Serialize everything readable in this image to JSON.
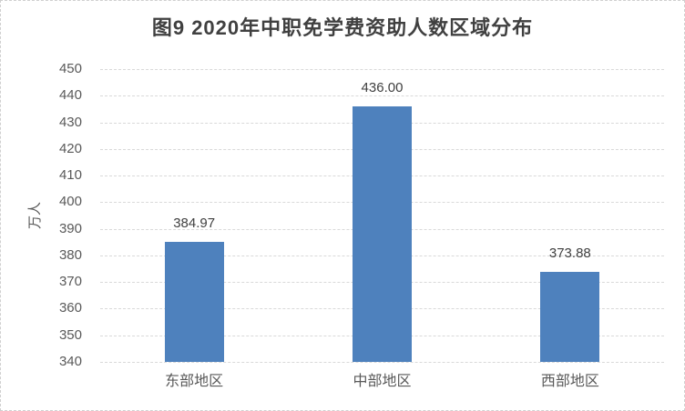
{
  "chart_data": {
    "type": "bar",
    "title": "图9 2020年中职免学费资助人数区域分布",
    "categories": [
      "东部地区",
      "中部地区",
      "西部地区"
    ],
    "values": [
      384.97,
      436.0,
      373.88
    ],
    "data_labels": [
      "384.97",
      "436.00",
      "373.88"
    ],
    "xlabel": "",
    "ylabel": "万人",
    "ylim": [
      340,
      450
    ],
    "yticks": [
      340,
      350,
      360,
      370,
      380,
      390,
      400,
      410,
      420,
      430,
      440,
      450
    ],
    "grid": true,
    "legend_position": "none",
    "colors": {
      "bar": "#4E81BD",
      "gridline": "#D9D9D9",
      "axis_text": "#595959",
      "data_label": "#404040",
      "title": "#404040",
      "background": "#FFFFFF",
      "frame_border": "#CFCFCF"
    }
  }
}
